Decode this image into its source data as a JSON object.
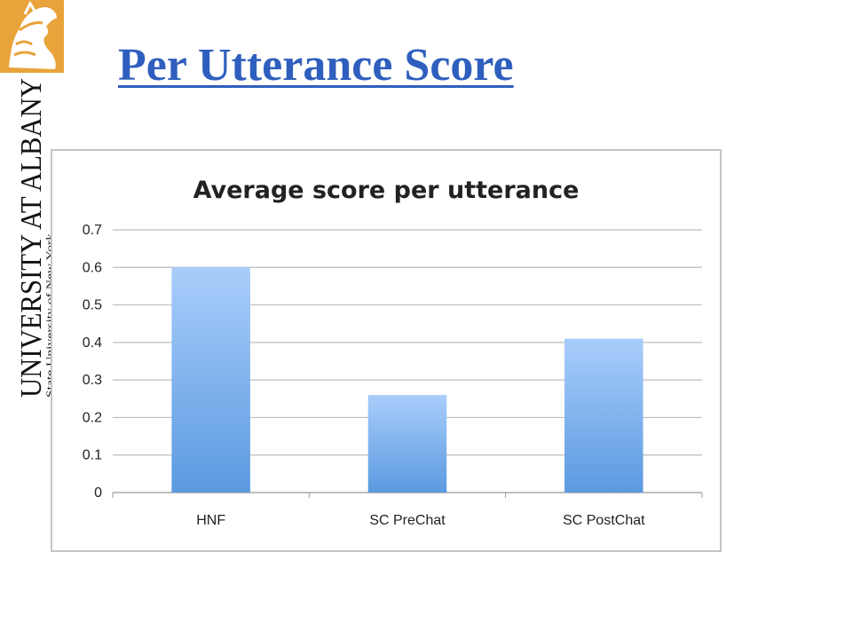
{
  "slide": {
    "title": "Per Utterance Score",
    "logo": {
      "icon": "minerva-head-icon",
      "wordmark_main": "UNIVERSITY AT ALBANY",
      "wordmark_sub": "State University of New York",
      "accent_color": "#e8a33a"
    }
  },
  "chart_data": {
    "type": "bar",
    "title": "Average score per utterance",
    "categories": [
      "HNF",
      "SC PreChat",
      "SC PostChat"
    ],
    "values": [
      0.6,
      0.26,
      0.41
    ],
    "xlabel": "",
    "ylabel": "",
    "ylim": [
      0,
      0.7
    ],
    "yticks": [
      "0",
      "0.1",
      "0.2",
      "0.3",
      "0.4",
      "0.5",
      "0.6",
      "0.7"
    ],
    "grid": true,
    "legend": "none",
    "bar_color_top": "#a9cdfb",
    "bar_color_bottom": "#5b9ae0"
  }
}
